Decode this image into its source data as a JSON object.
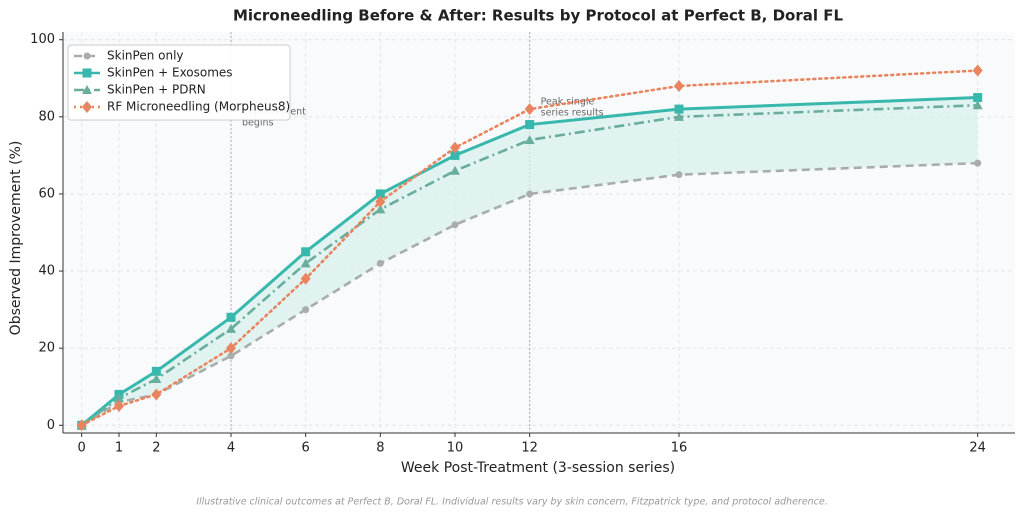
{
  "chart_data": {
    "type": "line",
    "title": "Microneedling Before & After: Results by Protocol at Perfect B, Doral FL",
    "xlabel": "Week Post-Treatment (3-session series)",
    "ylabel": "Observed Improvement (%)",
    "footnote": "Illustrative clinical outcomes at Perfect B, Doral FL. Individual results vary by skin concern, Fitzpatrick type, and protocol adherence.",
    "x": [
      0,
      1,
      2,
      4,
      6,
      8,
      10,
      12,
      16,
      24
    ],
    "series": [
      {
        "name": "SkinPen only",
        "color": "#a8adab",
        "dash": "dashed",
        "marker": "circle",
        "values": [
          0,
          6,
          8,
          18,
          30,
          42,
          52,
          60,
          65,
          68
        ]
      },
      {
        "name": "SkinPen + Exosomes",
        "color": "#38b8ad",
        "dash": "solid",
        "marker": "square",
        "values": [
          0,
          8,
          14,
          28,
          45,
          60,
          70,
          78,
          82,
          85
        ]
      },
      {
        "name": "SkinPen + PDRN",
        "color": "#69ad9c",
        "dash": "dashdot",
        "marker": "triangle",
        "values": [
          0,
          7,
          12,
          25,
          42,
          56,
          66,
          74,
          80,
          83
        ]
      },
      {
        "name": "RF Microneedling (Morpheus8)",
        "color": "#e8855f",
        "dash": "dotted",
        "marker": "diamond",
        "values": [
          0,
          5,
          8,
          20,
          38,
          58,
          72,
          82,
          88,
          92
        ]
      }
    ],
    "fill_between": [
      0,
      1
    ],
    "fill_color": "#d6efec",
    "annotations": [
      {
        "x": 4,
        "lines": [
          "Improvement",
          "begins"
        ]
      },
      {
        "x": 12,
        "lines": [
          "Peak single",
          "series results"
        ]
      }
    ],
    "xlim": [
      -0.5,
      25
    ],
    "xticks": [
      0,
      1,
      2,
      4,
      6,
      8,
      10,
      12,
      16,
      24
    ],
    "ylim": [
      -2,
      102
    ],
    "yticks": [
      0,
      20,
      40,
      60,
      80,
      100
    ],
    "grid": true,
    "legend": "upper left"
  }
}
